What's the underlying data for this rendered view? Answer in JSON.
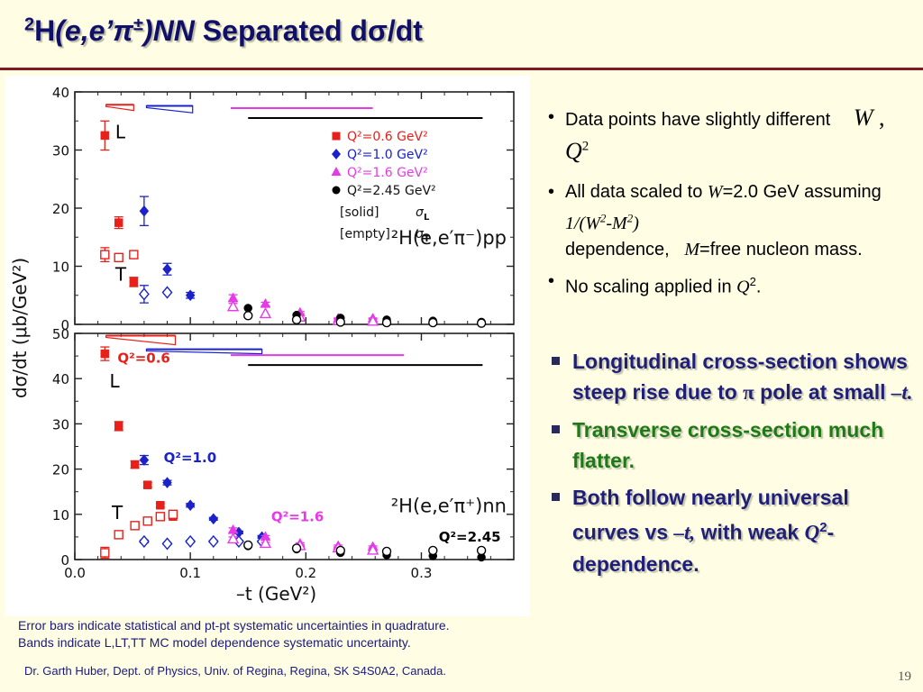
{
  "slide": {
    "title_sup": "2",
    "title_H": "H",
    "title_reaction": "(e,e’π",
    "title_pm": "±",
    "title_close": ")",
    "title_nn": "NN",
    "title_rest": " Separated dσ/dt",
    "page_number": "19",
    "footer": "Dr. Garth Huber, Dept. of Physics, Univ. of Regina, Regina, SK S4S0A2, Canada.",
    "note1": "Error bars indicate statistical and pt-pt systematic uncertainties in quadrature.",
    "note2": "Bands indicate L,LT,TT MC model dependence systematic uncertainty."
  },
  "bullets": {
    "b1_text": "Data points have slightly different",
    "b1_math_W": "W",
    "b1_math_comma": ",",
    "b1_math_Q": "Q",
    "b1_math_exp": "2",
    "b2_a": "All data scaled to",
    "b2_W": "W",
    "b2_b": "=2.0 GeV assuming",
    "b2_formula": "1/(W",
    "b2_formula_sup1": "2",
    "b2_formula_mid": "-M",
    "b2_formula_sup2": "2",
    "b2_formula_end": ")",
    "b2_c": "dependence,",
    "b2_M": "M",
    "b2_d": "=free nucleon mass.",
    "b3_a": "No scaling applied in",
    "b3_Q": "Q",
    "b3_sup": "2",
    "b3_end": ".",
    "bullet_char": "•"
  },
  "conclusions": {
    "c1_a": "Longitudinal cross-section shows steep rise due to",
    "c1_pi": "π",
    "c1_b": "pole at small",
    "c1_t": "–t.",
    "c2": "Transverse cross-section much flatter.",
    "c3_a": "Both follow nearly universal curves vs",
    "c3_t": "–t,",
    "c3_b": "with weak",
    "c3_Q": "Q",
    "c3_sup": "2",
    "c3_c": "-dependence."
  },
  "chart_data": {
    "type": "scatter",
    "ylabel": "dσ/dt  (μb/GeV²)",
    "xlabel": "–t  (GeV²)",
    "xlim": [
      0.0,
      0.38
    ],
    "x_ticks": [
      "0.0",
      "0.1",
      "0.2",
      "0.3"
    ],
    "x_tick_values": [
      0.0,
      0.1,
      0.2,
      0.3
    ],
    "legend": [
      {
        "name": "Q²=0.6 GeV²",
        "color": "#e8201a",
        "marker": "square"
      },
      {
        "name": "Q²=1.0 GeV²",
        "color": "#1a22c8",
        "marker": "diamond"
      },
      {
        "name": "Q²=1.6 GeV²",
        "color": "#e63ae6",
        "marker": "triangle"
      },
      {
        "name": "Q²=2.45 GeV²",
        "color": "#000000",
        "marker": "circle"
      }
    ],
    "legend_solid": "[solid]",
    "legend_solid_sym": "σ",
    "legend_solid_sub": "L",
    "legend_empty": "[empty]",
    "legend_empty_sym": "σ",
    "legend_empty_sub": "T",
    "panels": [
      {
        "name": "top",
        "reaction": "²H(e,e′π⁻)pp",
        "ylim": [
          0,
          40
        ],
        "y_ticks": [
          "0",
          "10",
          "20",
          "30",
          "40"
        ],
        "y_tick_values": [
          0,
          10,
          20,
          30,
          40
        ],
        "labels": [
          {
            "text": "L",
            "x": 0.035,
            "y": 32,
            "color": "#000000"
          },
          {
            "text": "T",
            "x": 0.035,
            "y": 7.5,
            "color": "#000000"
          }
        ],
        "series": [
          {
            "name": "Q²=0.6 GeV²",
            "color": "#e8201a",
            "marker": "square",
            "filled": true,
            "x": [
              0.026,
              0.038,
              0.051
            ],
            "y": [
              32.5,
              17.5,
              7.3
            ],
            "err": [
              2.5,
              1.0,
              0.8
            ]
          },
          {
            "name": "Q²=0.6 GeV²",
            "color": "#e8201a",
            "marker": "square",
            "filled": false,
            "x": [
              0.026,
              0.038,
              0.051
            ],
            "y": [
              12.0,
              11.5,
              12.0
            ],
            "err": [
              1.2,
              0.6,
              0.4
            ]
          },
          {
            "name": "Q²=1.0 GeV²",
            "color": "#1a22c8",
            "marker": "diamond",
            "filled": true,
            "x": [
              0.06,
              0.08,
              0.1
            ],
            "y": [
              19.5,
              9.5,
              5.0
            ],
            "err": [
              2.5,
              1.0,
              0.5
            ]
          },
          {
            "name": "Q²=1.0 GeV²",
            "color": "#1a22c8",
            "marker": "diamond",
            "filled": false,
            "x": [
              0.06,
              0.08
            ],
            "y": [
              5.2,
              5.5
            ],
            "err": [
              1.5,
              0.0
            ]
          },
          {
            "name": "Q²=1.6 GeV²",
            "color": "#e63ae6",
            "marker": "triangle",
            "filled": true,
            "x": [
              0.137,
              0.165,
              0.195,
              0.228,
              0.258
            ],
            "y": [
              4.5,
              3.5,
              2.0,
              1.0,
              1.0
            ],
            "err": [
              0.6,
              0.3,
              0.2,
              0.1,
              0.1
            ]
          },
          {
            "name": "Q²=1.6 GeV²",
            "color": "#e63ae6",
            "marker": "triangle",
            "filled": false,
            "x": [
              0.137,
              0.165,
              0.195,
              0.228,
              0.258
            ],
            "y": [
              3.0,
              1.8,
              1.2,
              0.6,
              0.5
            ],
            "err": [
              0.6,
              0,
              0,
              0,
              0
            ]
          },
          {
            "name": "Q²=2.45 GeV²",
            "color": "#000000",
            "marker": "circle",
            "filled": true,
            "x": [
              0.15,
              0.192,
              0.23,
              0.27,
              0.31,
              0.352
            ],
            "y": [
              2.8,
              1.6,
              1.1,
              0.8,
              0.6,
              0.4
            ],
            "err": [
              0,
              0,
              0,
              0,
              0,
              0
            ]
          },
          {
            "name": "Q²=2.45 GeV²",
            "color": "#000000",
            "marker": "circle",
            "filled": false,
            "x": [
              0.15,
              0.192,
              0.23,
              0.27,
              0.31,
              0.352
            ],
            "y": [
              1.5,
              0.8,
              0.4,
              0.3,
              0.3,
              0.2
            ],
            "err": [
              0,
              0,
              0,
              0,
              0,
              0
            ]
          }
        ],
        "bands": [
          {
            "color": "#e8201a",
            "x0": 0.027,
            "x1": 0.051,
            "y": 37.8,
            "h": 1.0
          },
          {
            "color": "#1a22c8",
            "x0": 0.062,
            "x1": 0.102,
            "y": 37.6,
            "h": 1.2
          },
          {
            "color": "#e63ae6",
            "x0": 0.135,
            "x1": 0.258,
            "y": 37.2,
            "h": 0.0
          },
          {
            "color": "#000000",
            "x0": 0.15,
            "x1": 0.353,
            "y": 35.5,
            "h": 0.0
          }
        ]
      },
      {
        "name": "bottom",
        "reaction": "²H(e,e′π⁺)nn",
        "ylim": [
          0,
          50
        ],
        "y_ticks": [
          "0",
          "10",
          "20",
          "30",
          "40",
          "50"
        ],
        "y_tick_values": [
          0,
          10,
          20,
          30,
          40,
          50
        ],
        "labels": [
          {
            "text": "Q²=0.6",
            "x": 0.037,
            "y": 43.5,
            "color": "#e8201a"
          },
          {
            "text": "L",
            "x": 0.03,
            "y": 38.0,
            "color": "#000000"
          },
          {
            "text": "Q²=1.0",
            "x": 0.077,
            "y": 21.5,
            "color": "#1a22c8"
          },
          {
            "text": "T",
            "x": 0.032,
            "y": 9.0,
            "color": "#000000"
          },
          {
            "text": "Q²=1.6",
            "x": 0.17,
            "y": 8.5,
            "color": "#e63ae6"
          },
          {
            "text": "Q²=2.45",
            "x": 0.315,
            "y": 4.0,
            "color": "#000000"
          }
        ],
        "series": [
          {
            "name": "Q²=0.6 GeV²",
            "color": "#e8201a",
            "marker": "square",
            "filled": true,
            "x": [
              0.026,
              0.038,
              0.052,
              0.063,
              0.074,
              0.085
            ],
            "y": [
              45.5,
              29.5,
              21.0,
              16.5,
              12.0,
              9.5
            ],
            "err": [
              1.5,
              1.0,
              0.8,
              0.5,
              0.4,
              0.4
            ]
          },
          {
            "name": "Q²=0.6 GeV²",
            "color": "#e8201a",
            "marker": "square",
            "filled": false,
            "x": [
              0.026,
              0.038,
              0.052,
              0.063,
              0.074,
              0.085
            ],
            "y": [
              1.5,
              5.5,
              7.5,
              8.5,
              9.5,
              10.0
            ],
            "err": [
              1.2,
              0.4,
              0.3,
              0.3,
              0.3,
              0.3
            ]
          },
          {
            "name": "Q²=1.0 GeV²",
            "color": "#1a22c8",
            "marker": "diamond",
            "filled": true,
            "x": [
              0.06,
              0.08,
              0.1,
              0.12,
              0.142,
              0.162
            ],
            "y": [
              22.0,
              17.0,
              12.0,
              9.0,
              6.0,
              5.0
            ],
            "err": [
              1.0,
              0.5,
              0.4,
              0.3,
              0.3,
              0.3
            ]
          },
          {
            "name": "Q²=1.0 GeV²",
            "color": "#1a22c8",
            "marker": "diamond",
            "filled": false,
            "x": [
              0.06,
              0.08,
              0.1,
              0.12,
              0.142,
              0.162
            ],
            "y": [
              4.0,
              3.5,
              4.0,
              4.0,
              4.0,
              4.0
            ],
            "err": [
              0.3,
              0.2,
              0.2,
              0.2,
              0.2,
              0.2
            ]
          },
          {
            "name": "Q²=1.6 GeV²",
            "color": "#e63ae6",
            "marker": "triangle",
            "filled": true,
            "x": [
              0.137,
              0.165,
              0.195,
              0.228,
              0.258
            ],
            "y": [
              6.5,
              5.0,
              3.5,
              3.0,
              2.8
            ],
            "err": [
              0.5,
              0.3,
              0.2,
              0.2,
              0.2
            ]
          },
          {
            "name": "Q²=1.6 GeV²",
            "color": "#e63ae6",
            "marker": "triangle",
            "filled": false,
            "x": [
              0.137,
              0.165,
              0.195,
              0.228,
              0.258
            ],
            "y": [
              4.5,
              3.5,
              3.0,
              2.5,
              2.0
            ],
            "err": [
              0.5,
              0.3,
              0.2,
              0.2,
              0.2
            ]
          },
          {
            "name": "Q²=2.45 GeV²",
            "color": "#000000",
            "marker": "circle",
            "filled": true,
            "x": [
              0.15,
              0.192,
              0.23,
              0.27,
              0.31,
              0.352
            ],
            "y": [
              3.0,
              2.3,
              1.5,
              1.0,
              0.8,
              0.5
            ],
            "err": [
              0,
              0,
              0,
              0,
              0,
              0
            ]
          },
          {
            "name": "Q²=2.45 GeV²",
            "color": "#000000",
            "marker": "circle",
            "filled": false,
            "x": [
              0.15,
              0.192,
              0.23,
              0.27,
              0.31,
              0.352
            ],
            "y": [
              3.2,
              2.5,
              2.0,
              1.8,
              2.0,
              2.0
            ],
            "err": [
              0,
              0,
              0,
              0,
              0,
              0
            ]
          }
        ],
        "bands": [
          {
            "color": "#e8201a",
            "x0": 0.027,
            "x1": 0.087,
            "y": 49.5,
            "h": 2.0
          },
          {
            "color": "#1a22c8",
            "x0": 0.062,
            "x1": 0.162,
            "y": 46.5,
            "h": 1.0
          },
          {
            "color": "#e63ae6",
            "x0": 0.135,
            "x1": 0.285,
            "y": 45.2,
            "h": 0.0
          },
          {
            "color": "#000000",
            "x0": 0.15,
            "x1": 0.353,
            "y": 43.0,
            "h": 0.0
          }
        ]
      }
    ]
  }
}
